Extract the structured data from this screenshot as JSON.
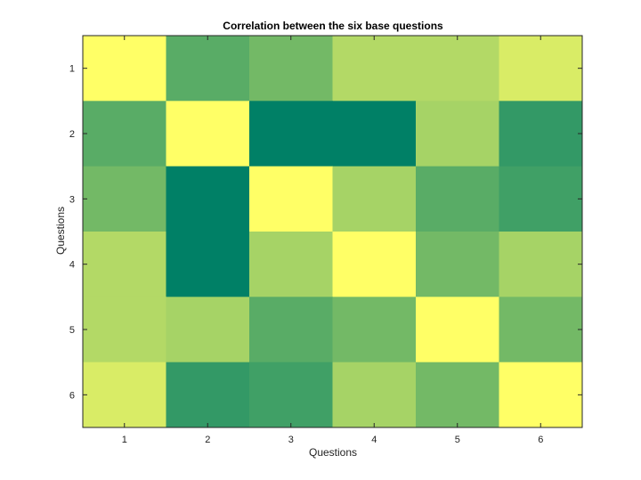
{
  "chart_data": {
    "type": "heatmap",
    "title": "Correlation between the six base questions",
    "xlabel": "Questions",
    "ylabel": "Questions",
    "x_categories": [
      "1",
      "2",
      "3",
      "4",
      "5",
      "6"
    ],
    "y_categories": [
      "1",
      "2",
      "3",
      "4",
      "5",
      "6"
    ],
    "colormap": "summer",
    "color_min": "#008066",
    "color_max": "#ffff66",
    "values": [
      [
        1.0,
        0.35,
        0.45,
        0.7,
        0.7,
        0.85
      ],
      [
        0.35,
        1.0,
        0.0,
        0.0,
        0.65,
        0.2
      ],
      [
        0.45,
        0.0,
        1.0,
        0.65,
        0.35,
        0.25
      ],
      [
        0.7,
        0.0,
        0.65,
        1.0,
        0.45,
        0.65
      ],
      [
        0.7,
        0.65,
        0.35,
        0.45,
        1.0,
        0.45
      ],
      [
        0.85,
        0.2,
        0.25,
        0.65,
        0.45,
        1.0
      ]
    ]
  }
}
